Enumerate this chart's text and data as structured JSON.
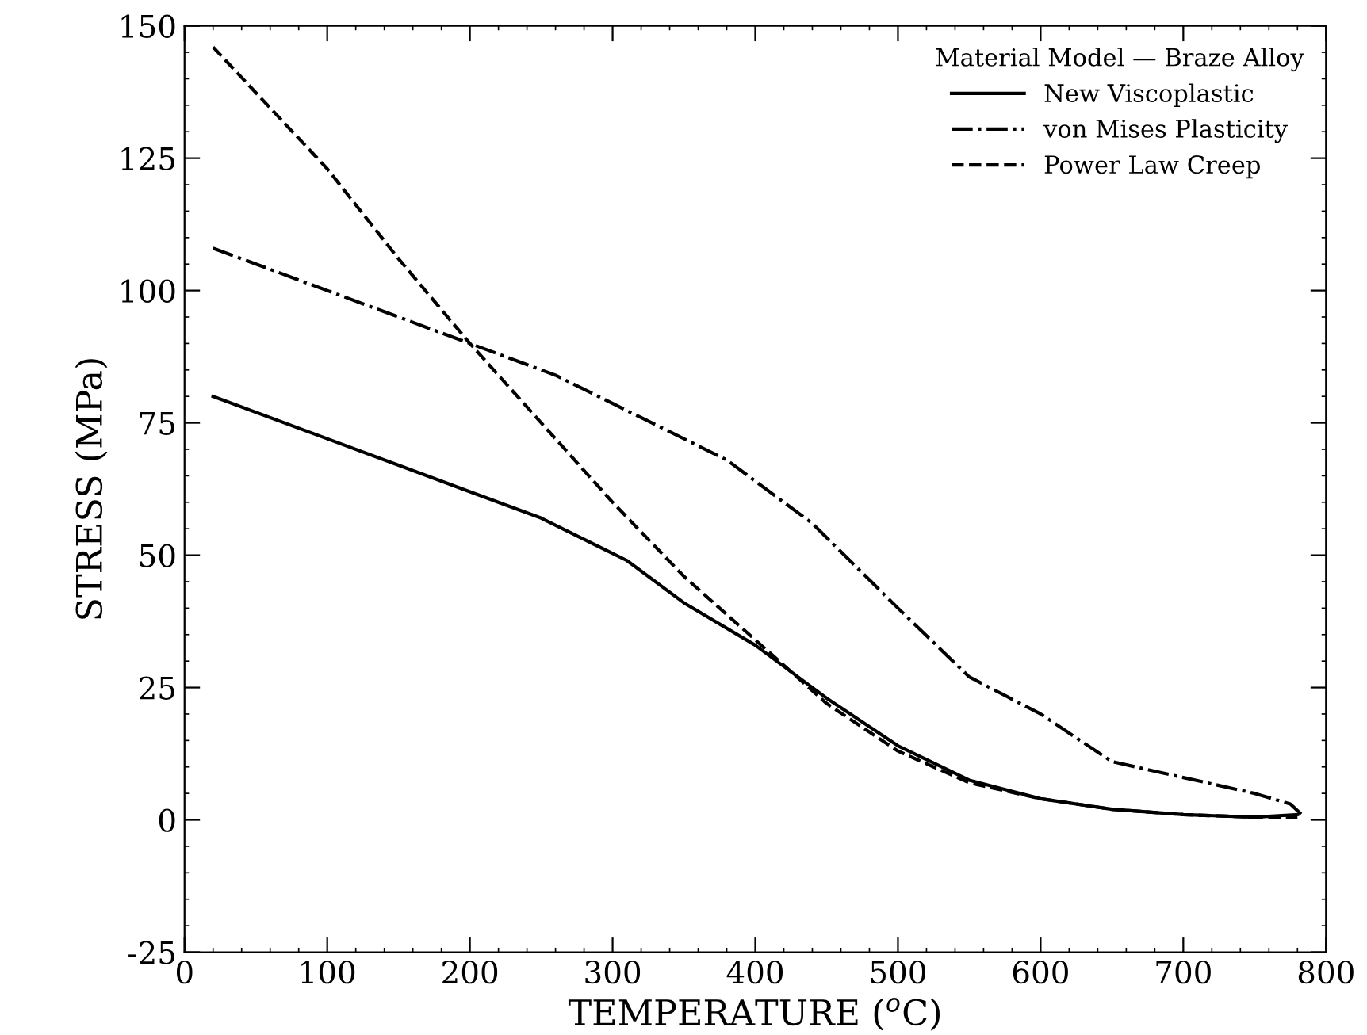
{
  "chart_data": {
    "type": "line",
    "xlabel": "TEMPERATURE ($^{o}$C)",
    "ylabel": "STRESS (MPa)",
    "legend_title": "Material Model — Braze Alloy",
    "legend": "top right",
    "grid": false,
    "marker": "none",
    "xlim": [
      0,
      800
    ],
    "ylim": [
      -25,
      150
    ],
    "xticks": [
      0,
      100,
      200,
      300,
      400,
      500,
      600,
      700,
      800
    ],
    "yticks": [
      -25,
      0,
      25,
      50,
      75,
      100,
      125,
      150
    ],
    "series": [
      {
        "name": "New Viscoplastic",
        "color": "#000000",
        "line_style": "solid",
        "x": [
          20,
          100,
          200,
          250,
          310,
          350,
          400,
          450,
          500,
          550,
          600,
          650,
          700,
          750,
          780
        ],
        "values": [
          80,
          72,
          62,
          57,
          49,
          41,
          33,
          23,
          14,
          7.5,
          4,
          2,
          1,
          0.5,
          1
        ]
      },
      {
        "name": "von Mises Plasticity",
        "color": "#000000",
        "line_style": "dashdot",
        "x": [
          20,
          100,
          200,
          260,
          320,
          380,
          440,
          500,
          550,
          600,
          650,
          700,
          750,
          775,
          785
        ],
        "values": [
          108,
          100,
          90,
          84,
          76,
          68,
          56,
          40,
          27,
          20,
          11,
          8,
          5,
          3,
          0.5
        ]
      },
      {
        "name": "Power Law Creep",
        "color": "#000000",
        "line_style": "dashed",
        "x": [
          20,
          100,
          150,
          200,
          250,
          300,
          350,
          400,
          450,
          500,
          550,
          600,
          650,
          700,
          750,
          780
        ],
        "values": [
          146,
          123,
          106,
          90,
          75,
          60,
          46,
          34,
          22,
          13,
          7,
          4,
          2,
          1,
          0.5,
          0.5
        ]
      }
    ]
  }
}
